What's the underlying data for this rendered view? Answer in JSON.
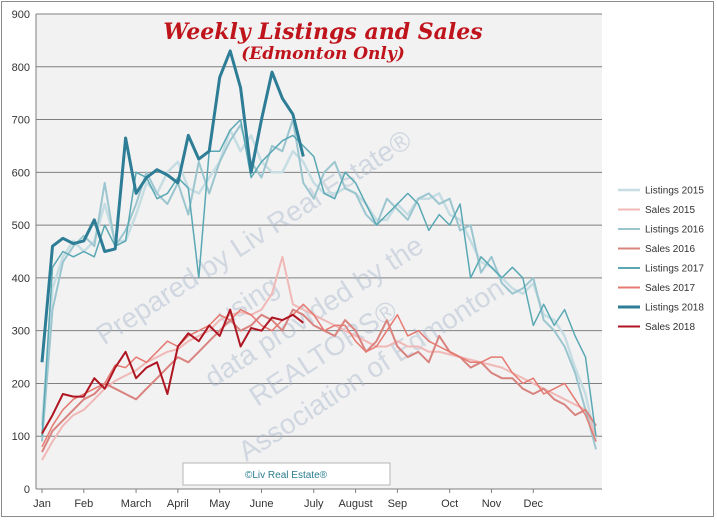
{
  "chart_data": {
    "type": "line",
    "title": "Weekly Listings and Sales",
    "subtitle": "(Edmonton Only)",
    "xlabel": "",
    "ylabel": "",
    "ylim": [
      0,
      900
    ],
    "yticks": [
      0,
      100,
      200,
      300,
      400,
      500,
      600,
      700,
      800,
      900
    ],
    "x_tick_labels": [
      "Jan",
      "Feb",
      "March",
      "April",
      "May",
      "June",
      "July",
      "August",
      "Sep",
      "Oct",
      "Nov",
      "Dec"
    ],
    "x_tick_weeks": [
      1,
      5,
      10,
      14,
      18,
      22,
      27,
      31,
      35,
      40,
      44,
      48
    ],
    "grid": true,
    "legend_position": "right",
    "credit": "©Liv Real Estate®",
    "watermark": [
      "Prepared by Liv Real Estate®",
      "using",
      "data provided by the",
      "REALTORS®",
      "Association of Edmonton."
    ],
    "series": [
      {
        "name": "Listings 2015",
        "color": "#c6dde3",
        "width": 2.5,
        "values": [
          120,
          380,
          440,
          470,
          450,
          470,
          540,
          470,
          470,
          520,
          580,
          560,
          600,
          620,
          570,
          560,
          590,
          620,
          680,
          640,
          670,
          620,
          600,
          600,
          640,
          620,
          580,
          560,
          560,
          570,
          560,
          540,
          510,
          510,
          540,
          520,
          550,
          550,
          560,
          520,
          510,
          470,
          430,
          420,
          400,
          380,
          370,
          390,
          330,
          320,
          290,
          230,
          180,
          90
        ]
      },
      {
        "name": "Sales 2015",
        "color": "#f0b8b6",
        "width": 2,
        "values": [
          55,
          90,
          120,
          140,
          150,
          170,
          190,
          205,
          215,
          225,
          240,
          250,
          260,
          265,
          280,
          290,
          300,
          320,
          330,
          335,
          330,
          340,
          370,
          440,
          350,
          340,
          330,
          320,
          310,
          300,
          290,
          280,
          270,
          270,
          280,
          270,
          270,
          260,
          260,
          255,
          250,
          245,
          240,
          235,
          230,
          220,
          210,
          200,
          190,
          180,
          170,
          160,
          150,
          100
        ]
      },
      {
        "name": "Listings 2016",
        "color": "#9cc6cf",
        "width": 2,
        "values": [
          90,
          340,
          430,
          460,
          480,
          460,
          580,
          460,
          490,
          540,
          600,
          560,
          540,
          580,
          520,
          620,
          560,
          620,
          660,
          690,
          620,
          590,
          650,
          640,
          700,
          580,
          550,
          600,
          620,
          570,
          560,
          520,
          500,
          550,
          530,
          510,
          550,
          560,
          540,
          550,
          490,
          500,
          410,
          440,
          390,
          370,
          380,
          400,
          320,
          300,
          270,
          220,
          150,
          75
        ]
      },
      {
        "name": "Sales 2016",
        "color": "#d9837f",
        "width": 2,
        "values": [
          70,
          110,
          130,
          150,
          170,
          180,
          200,
          190,
          180,
          170,
          190,
          210,
          230,
          250,
          240,
          260,
          280,
          300,
          320,
          300,
          310,
          330,
          320,
          300,
          340,
          330,
          310,
          300,
          290,
          320,
          300,
          260,
          280,
          320,
          270,
          250,
          260,
          240,
          290,
          260,
          250,
          230,
          240,
          220,
          210,
          210,
          190,
          180,
          190,
          170,
          160,
          140,
          150,
          120
        ]
      },
      {
        "name": "Listings 2017",
        "color": "#5aa8b4",
        "width": 1.5,
        "values": [
          100,
          420,
          450,
          440,
          450,
          440,
          500,
          460,
          470,
          600,
          590,
          550,
          560,
          590,
          570,
          400,
          640,
          640,
          680,
          700,
          590,
          620,
          640,
          660,
          670,
          650,
          630,
          560,
          550,
          600,
          580,
          540,
          500,
          520,
          540,
          560,
          540,
          490,
          520,
          500,
          540,
          400,
          440,
          420,
          400,
          420,
          400,
          310,
          350,
          310,
          340,
          290,
          250,
          100
        ]
      },
      {
        "name": "Sales 2017",
        "color": "#e57a72",
        "width": 1.5,
        "values": [
          80,
          120,
          150,
          170,
          180,
          190,
          200,
          235,
          230,
          250,
          240,
          260,
          280,
          270,
          290,
          300,
          310,
          330,
          320,
          340,
          330,
          310,
          300,
          320,
          330,
          350,
          330,
          300,
          310,
          310,
          280,
          260,
          270,
          300,
          330,
          290,
          300,
          280,
          270,
          260,
          250,
          240,
          240,
          250,
          250,
          220,
          200,
          210,
          180,
          190,
          200,
          170,
          140,
          90
        ]
      },
      {
        "name": "Listings 2018",
        "color": "#2e7d96",
        "width": 3,
        "values": [
          240,
          460,
          475,
          465,
          470,
          510,
          450,
          455,
          665,
          560,
          590,
          605,
          595,
          580,
          670,
          625,
          640,
          780,
          830,
          760,
          600,
          700,
          790,
          740,
          710,
          630
        ]
      },
      {
        "name": "Sales 2018",
        "color": "#b01622",
        "width": 2,
        "values": [
          105,
          140,
          180,
          175,
          175,
          210,
          190,
          230,
          260,
          210,
          230,
          240,
          180,
          270,
          295,
          280,
          310,
          290,
          340,
          270,
          305,
          300,
          325,
          320,
          330,
          315
        ]
      }
    ]
  }
}
